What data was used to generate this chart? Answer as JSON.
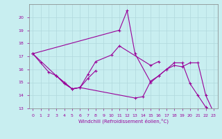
{
  "background_color": "#c8eef0",
  "grid_color": "#b0d8dc",
  "line_color": "#990099",
  "xlabel": "Windchill (Refroidissement éolien,°C)",
  "xlim": [
    -0.5,
    23.5
  ],
  "ylim": [
    13,
    21
  ],
  "yticks": [
    13,
    14,
    15,
    16,
    17,
    18,
    19,
    20
  ],
  "xticks": [
    0,
    1,
    2,
    3,
    4,
    5,
    6,
    7,
    8,
    9,
    10,
    11,
    12,
    13,
    14,
    15,
    16,
    17,
    18,
    19,
    20,
    21,
    22,
    23
  ],
  "series": [
    {
      "x": [
        0,
        1,
        2,
        3,
        4,
        5,
        6,
        7,
        8
      ],
      "y": [
        17.2,
        16.5,
        15.8,
        15.5,
        14.9,
        14.5,
        14.6,
        15.3,
        15.9
      ]
    },
    {
      "x": [
        0,
        3,
        4,
        5,
        6,
        7,
        8,
        10,
        11,
        15,
        16
      ],
      "y": [
        17.2,
        15.5,
        15.0,
        14.5,
        14.6,
        15.6,
        16.6,
        17.1,
        17.8,
        16.3,
        16.6
      ]
    },
    {
      "x": [
        0,
        11,
        12,
        13,
        15,
        16,
        17,
        18,
        19,
        20,
        21,
        22,
        23
      ],
      "y": [
        17.2,
        19.0,
        20.5,
        17.2,
        15.0,
        15.5,
        16.0,
        16.5,
        16.5,
        14.9,
        14.0,
        13.1,
        12.7
      ]
    },
    {
      "x": [
        3,
        4,
        5,
        6,
        13,
        14,
        15,
        16,
        17,
        18,
        19,
        20,
        21,
        22,
        23
      ],
      "y": [
        15.5,
        15.0,
        14.5,
        14.6,
        13.8,
        13.9,
        15.1,
        15.5,
        16.0,
        16.3,
        16.2,
        16.5,
        16.5,
        14.0,
        12.7
      ]
    }
  ]
}
